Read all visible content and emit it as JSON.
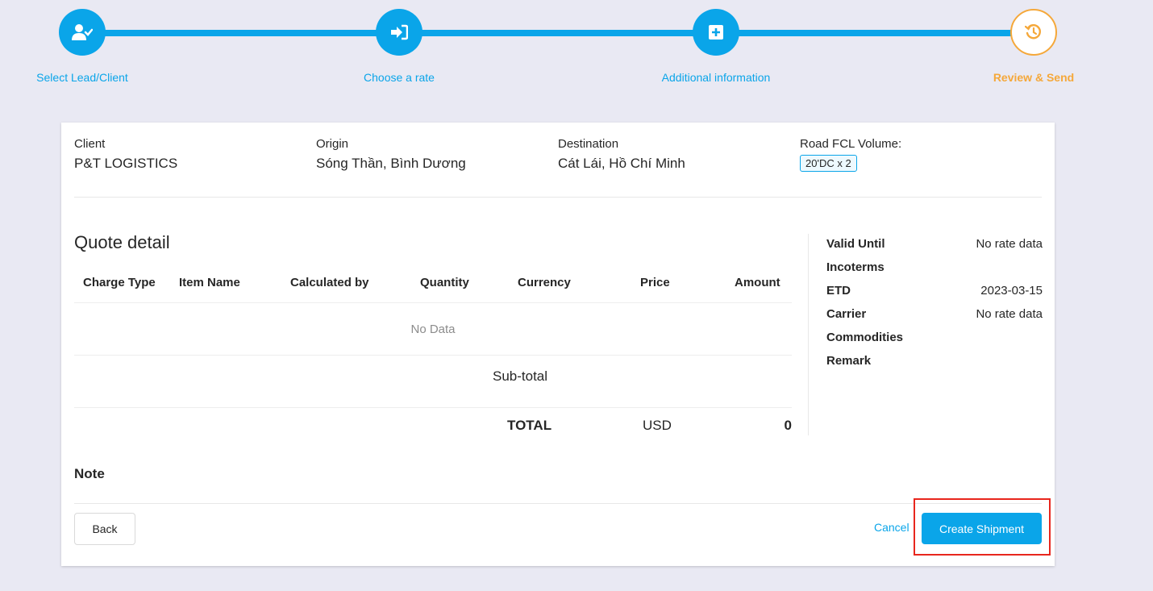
{
  "stepper": {
    "steps": [
      {
        "label": "Select Lead/Client",
        "icon": "user-check-icon"
      },
      {
        "label": "Choose a rate",
        "icon": "sign-in-icon"
      },
      {
        "label": "Additional information",
        "icon": "plus-square-icon"
      },
      {
        "label": "Review & Send",
        "icon": "history-icon",
        "active": true
      }
    ],
    "colors": {
      "done": "#0aa5e9",
      "active": "#f5a83a"
    }
  },
  "summary": {
    "client_label": "Client",
    "client_value": "P&T LOGISTICS",
    "origin_label": "Origin",
    "origin_value": "Sóng Thần, Bình Dương",
    "destination_label": "Destination",
    "destination_value": "Cát Lái, Hồ Chí Minh",
    "volume_label": "Road FCL Volume:",
    "volume_tag": "20'DC x 2"
  },
  "quote": {
    "title": "Quote detail",
    "columns": [
      "Charge Type",
      "Item Name",
      "Calculated by",
      "Quantity",
      "Currency",
      "Price",
      "Amount"
    ],
    "empty_text": "No Data",
    "subtotal_label": "Sub-total",
    "total_label": "TOTAL",
    "total_currency": "USD",
    "total_amount": "0"
  },
  "info": {
    "rows": [
      {
        "key": "Valid Until",
        "value": "No rate data"
      },
      {
        "key": "Incoterms",
        "value": ""
      },
      {
        "key": "ETD",
        "value": "2023-03-15"
      },
      {
        "key": "Carrier",
        "value": "No rate data"
      },
      {
        "key": "Commodities",
        "value": ""
      },
      {
        "key": "Remark",
        "value": ""
      }
    ]
  },
  "note": {
    "title": "Note"
  },
  "actions": {
    "back_label": "Back",
    "cancel_label": "Cancel",
    "create_label": "Create Shipment",
    "highlight_color": "#e8261d"
  }
}
